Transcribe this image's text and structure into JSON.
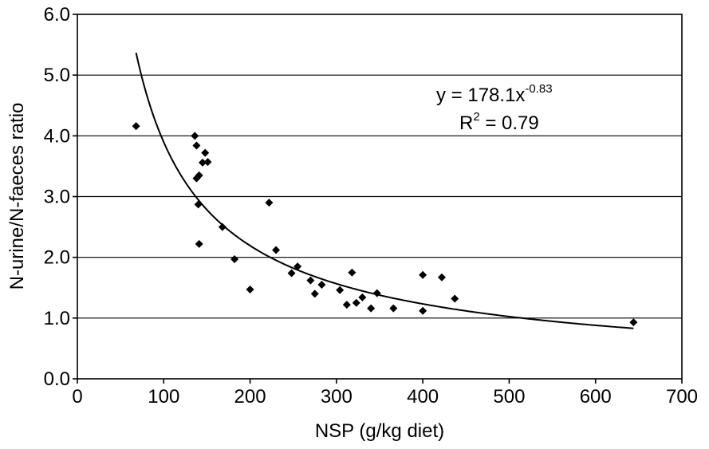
{
  "chart_data": {
    "type": "scatter",
    "title": "",
    "xlabel": "NSP (g/kg diet)",
    "ylabel": "N-urine/N-faeces ratio",
    "xlim": [
      0,
      700
    ],
    "ylim": [
      0,
      6
    ],
    "xticks": [
      0,
      100,
      200,
      300,
      400,
      500,
      600,
      700
    ],
    "xtick_labels": [
      "0",
      "100",
      "200",
      "300",
      "400",
      "500",
      "600",
      "700"
    ],
    "yticks": [
      0,
      1,
      2,
      3,
      4,
      5,
      6
    ],
    "ytick_labels": [
      "0.0",
      "1.0",
      "2.0",
      "3.0",
      "4.0",
      "5.0",
      "6.0"
    ],
    "grid": "horizontal",
    "points": [
      {
        "x": 68,
        "y": 4.16
      },
      {
        "x": 136,
        "y": 4.0
      },
      {
        "x": 138,
        "y": 3.84
      },
      {
        "x": 138,
        "y": 3.3
      },
      {
        "x": 140,
        "y": 2.87
      },
      {
        "x": 141,
        "y": 3.35
      },
      {
        "x": 141,
        "y": 2.22
      },
      {
        "x": 145,
        "y": 3.56
      },
      {
        "x": 148,
        "y": 3.72
      },
      {
        "x": 151,
        "y": 3.57
      },
      {
        "x": 168,
        "y": 2.5
      },
      {
        "x": 182,
        "y": 1.97
      },
      {
        "x": 200,
        "y": 1.47
      },
      {
        "x": 222,
        "y": 2.9
      },
      {
        "x": 230,
        "y": 2.12
      },
      {
        "x": 248,
        "y": 1.74
      },
      {
        "x": 255,
        "y": 1.85
      },
      {
        "x": 270,
        "y": 1.62
      },
      {
        "x": 275,
        "y": 1.4
      },
      {
        "x": 283,
        "y": 1.55
      },
      {
        "x": 304,
        "y": 1.46
      },
      {
        "x": 312,
        "y": 1.22
      },
      {
        "x": 318,
        "y": 1.75
      },
      {
        "x": 323,
        "y": 1.25
      },
      {
        "x": 330,
        "y": 1.34
      },
      {
        "x": 340,
        "y": 1.16
      },
      {
        "x": 347,
        "y": 1.41
      },
      {
        "x": 366,
        "y": 1.16
      },
      {
        "x": 400,
        "y": 1.71
      },
      {
        "x": 400,
        "y": 1.12
      },
      {
        "x": 422,
        "y": 1.67
      },
      {
        "x": 437,
        "y": 1.32
      },
      {
        "x": 644,
        "y": 0.93
      }
    ],
    "trendline": {
      "type": "power",
      "a": 178.1,
      "b": -0.83,
      "x_range": [
        68,
        644
      ]
    },
    "annotation": {
      "equation_base": "y = 178.1x",
      "equation_exponent": "-0.83",
      "r2_prefix": "R",
      "r2_exponent": "2",
      "r2_value": " = 0.79"
    },
    "colors": {
      "marker": "#000000",
      "line": "#000000",
      "grid": "#000000",
      "background": "#ffffff"
    }
  }
}
